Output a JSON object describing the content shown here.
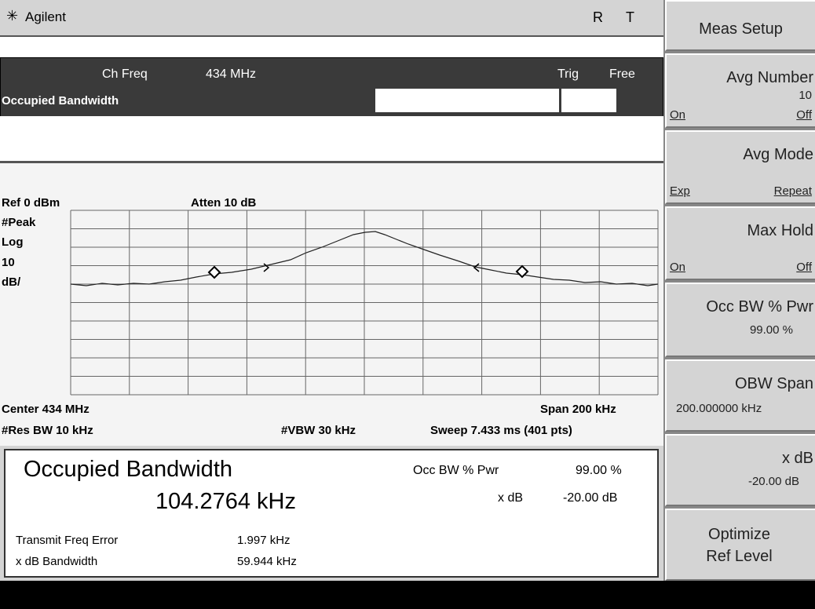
{
  "header": {
    "brand": "Agilent",
    "status": [
      "R",
      "T"
    ]
  },
  "meas_bar": {
    "ch_freq_label": "Ch Freq",
    "ch_freq_value": "434 MHz",
    "trig_label": "Trig",
    "trig_value": "Free",
    "title": "Occupied Bandwidth"
  },
  "graph": {
    "ref": "Ref 0 dBm",
    "atten": "Atten 10 dB",
    "scale": [
      "#Peak",
      "Log",
      "10",
      "dB/"
    ],
    "center": "Center 434 MHz",
    "span": "Span 200 kHz",
    "res_bw": "#Res BW 10 kHz",
    "vbw": "#VBW 30 kHz",
    "sweep": "Sweep 7.433 ms (401 pts)"
  },
  "results": {
    "title": "Occupied Bandwidth",
    "value": "104.2764 kHz",
    "occ_bw_label": "Occ BW % Pwr",
    "occ_bw_value": "99.00 %",
    "xdb_label": "x dB",
    "xdb_value": "-20.00 dB",
    "rows": [
      [
        "Transmit Freq Error",
        "1.997 kHz"
      ],
      [
        "x dB Bandwidth",
        "59.944 kHz"
      ]
    ]
  },
  "softkeys": [
    {
      "label": [
        "Meas Setup"
      ]
    },
    {
      "label": [
        "Avg Number"
      ],
      "value": "10",
      "options": [
        "On",
        "Off"
      ]
    },
    {
      "label": [
        "Avg Mode"
      ],
      "options": [
        "Exp",
        "Repeat"
      ]
    },
    {
      "label": [
        "Max Hold"
      ],
      "options": [
        "On",
        "Off"
      ]
    },
    {
      "label": [
        "Occ BW % Pwr"
      ],
      "value": "99.00 %"
    },
    {
      "label": [
        "OBW Span"
      ],
      "value": "200.000000 kHz"
    },
    {
      "label": [
        "x dB"
      ],
      "value": "-20.00 dB"
    },
    {
      "label": [
        "Optimize",
        "Ref Level"
      ]
    }
  ]
}
